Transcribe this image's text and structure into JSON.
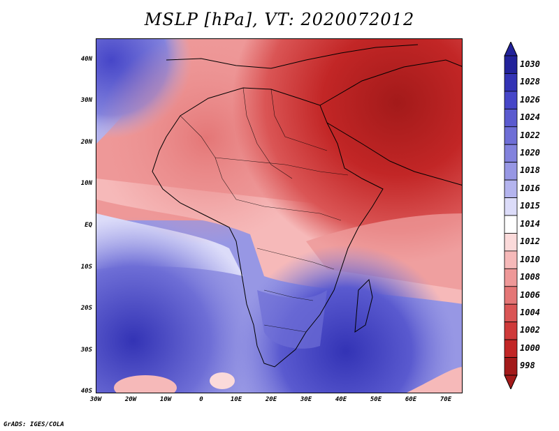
{
  "title": "MSLP [hPa], VT: 2020072012",
  "footer": "GrADS: IGES/COLA",
  "axes": {
    "lat_labels": [
      "40N",
      "30N",
      "20N",
      "10N",
      "EQ",
      "10S",
      "20S",
      "30S",
      "40S"
    ],
    "lon_labels": [
      "30W",
      "20W",
      "10W",
      "0",
      "10E",
      "20E",
      "30E",
      "40E",
      "50E",
      "60E",
      "70E"
    ]
  },
  "colorbar": {
    "levels": [
      "1030",
      "1028",
      "1026",
      "1024",
      "1022",
      "1020",
      "1018",
      "1016",
      "1015",
      "1014",
      "1012",
      "1010",
      "1008",
      "1006",
      "1004",
      "1002",
      "1000",
      "998"
    ],
    "colors": [
      "#22229a",
      "#3333b5",
      "#4646c8",
      "#5a5acf",
      "#6e6ed6",
      "#8282dd",
      "#9797e4",
      "#b4b4ee",
      "#dcdcf9",
      "#ffffff",
      "#fbdada",
      "#f6b9b9",
      "#ee9898",
      "#e47676",
      "#da5555",
      "#cf3a3a",
      "#c22626",
      "#a31a1a"
    ]
  }
}
